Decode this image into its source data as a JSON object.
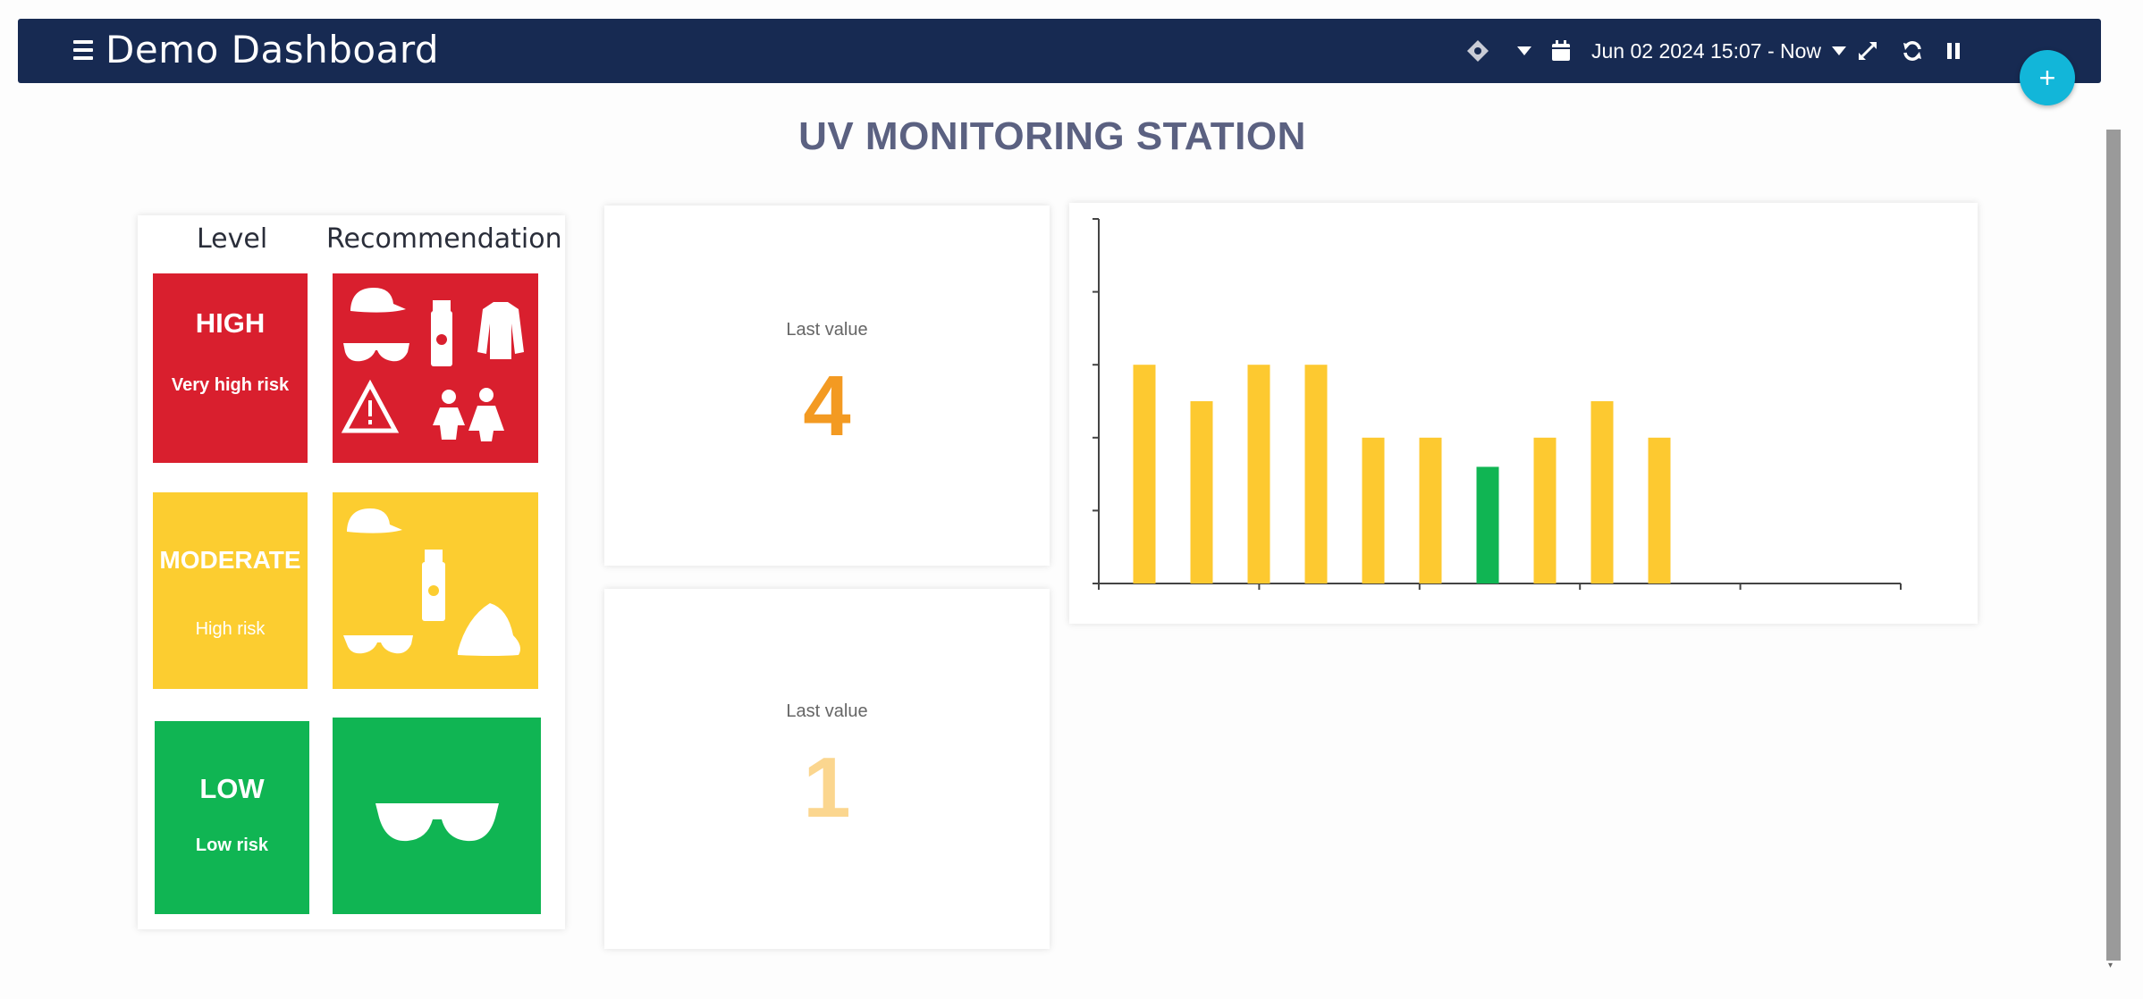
{
  "header": {
    "title": "Demo Dashboard",
    "time_range": "Jun 02 2024 15:07 - Now",
    "icons": [
      "menu-icon",
      "location-icon",
      "caret-down-icon",
      "calendar-icon",
      "expand-icon",
      "refresh-icon",
      "pause-icon"
    ]
  },
  "fab": {
    "label": "+"
  },
  "page": {
    "title": "UV MONITORING STATION"
  },
  "legend": {
    "level_header": "Level",
    "recommendation_header": "Recommendation",
    "levels": [
      {
        "name": "HIGH",
        "risk": "Very high risk",
        "color": "#d91f2e",
        "icons": [
          "cap-icon",
          "sunglasses-icon",
          "sunscreen-icon",
          "long-sleeve-shirt-icon",
          "warning-icon",
          "children-icon"
        ]
      },
      {
        "name": "MODERATE",
        "risk": "High risk",
        "color": "#fccd30",
        "icons": [
          "cap-icon",
          "sunscreen-icon",
          "sunglasses-icon",
          "sun-hat-icon"
        ]
      },
      {
        "name": "LOW",
        "risk": "Low risk",
        "color": "#10b553",
        "icons": [
          "sunglasses-icon"
        ]
      }
    ]
  },
  "stats": [
    {
      "label": "Last value",
      "value": "4",
      "color": "#f39a22"
    },
    {
      "label": "Last value",
      "value": "1",
      "color": "#fbd68f"
    }
  ],
  "chart_data": {
    "type": "bar",
    "values": [
      3,
      2.5,
      3,
      3,
      2,
      2,
      1.6,
      2,
      2.5,
      2
    ],
    "colors": [
      "#fdc930",
      "#fdc930",
      "#fdc930",
      "#fdc930",
      "#fdc930",
      "#fdc930",
      "#10b553",
      "#fdc930",
      "#fdc930",
      "#fdc930"
    ],
    "ylim": [
      0,
      5
    ],
    "y_gridlines": false,
    "title": "",
    "xlabel": "",
    "ylabel": ""
  }
}
